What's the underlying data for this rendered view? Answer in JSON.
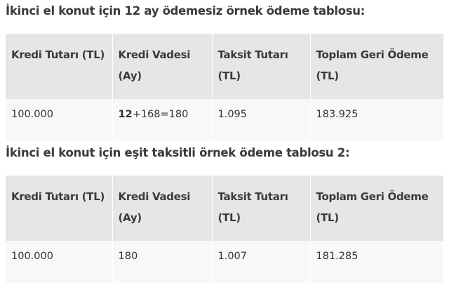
{
  "tables": [
    {
      "heading": "İkinci el konut için 12 ay ödemesiz örnek ödeme tablosu:",
      "headers": [
        "Kredi Tutarı (TL)",
        "Kredi Vadesi (Ay)",
        "Taksit Tutarı (TL)",
        "Toplam Geri Ödeme (TL)"
      ],
      "row": {
        "amount": "100.000",
        "term_bold": "12",
        "term_rest": "+168=180",
        "installment": "1.095",
        "total": "183.925"
      }
    },
    {
      "heading": "İkinci el konut için eşit taksitli örnek ödeme tablosu 2:",
      "headers": [
        "Kredi Tutarı (TL)",
        "Kredi Vadesi (Ay)",
        "Taksit Tutarı (TL)",
        "Toplam Geri Ödeme (TL)"
      ],
      "row": {
        "amount": "100.000",
        "term": "180",
        "installment": "1.007",
        "total": "181.285"
      }
    }
  ]
}
